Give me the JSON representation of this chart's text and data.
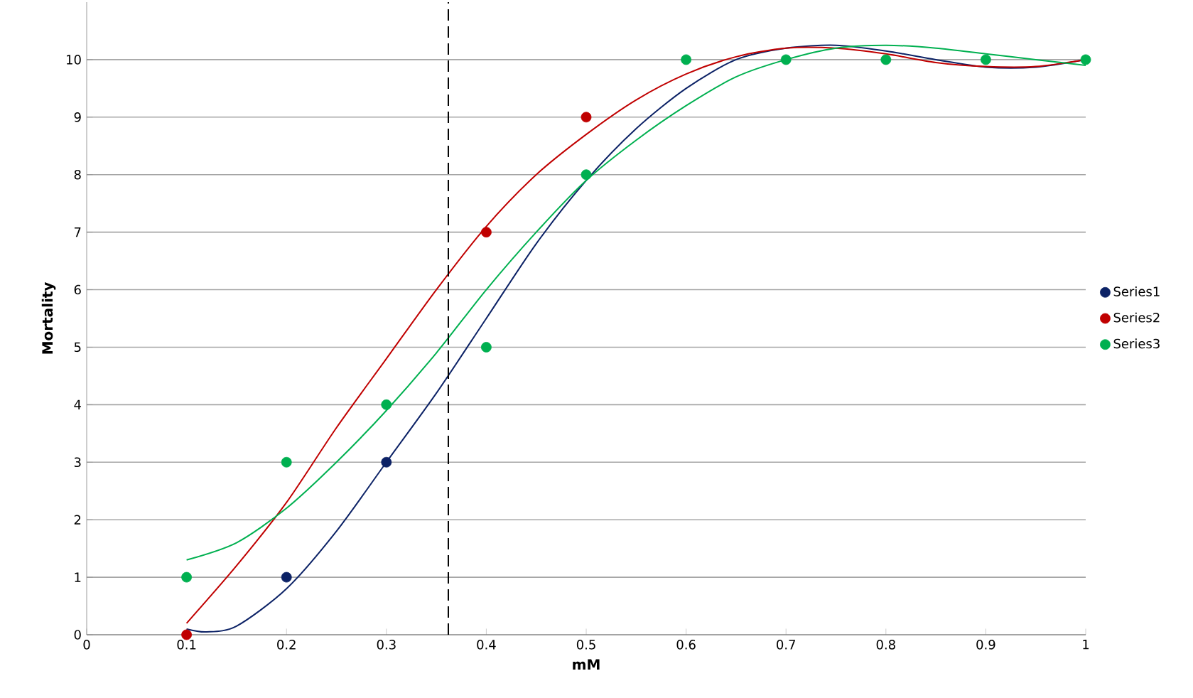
{
  "chart_data": {
    "type": "scatter",
    "xlabel": "mM",
    "ylabel": "Mortality",
    "x": [
      0.1,
      0.2,
      0.3,
      0.4,
      0.5,
      0.6,
      0.7,
      0.8,
      0.9,
      1
    ],
    "xlim": [
      0,
      1
    ],
    "ylim": [
      0,
      11
    ],
    "xticks": [
      0,
      0.1,
      0.2,
      0.3,
      0.4,
      0.5,
      0.6,
      0.7,
      0.8,
      0.9,
      1
    ],
    "yticks": [
      0,
      1,
      2,
      3,
      4,
      5,
      6,
      7,
      8,
      9,
      10
    ],
    "grid": "y",
    "legend": "right",
    "marker": "circle",
    "series": [
      {
        "name": "Series1",
        "color": "#0c2266",
        "values": [
          null,
          1,
          3,
          null,
          null,
          null,
          null,
          null,
          null,
          null
        ]
      },
      {
        "name": "Series2",
        "color": "#c00000",
        "values": [
          0,
          null,
          null,
          7,
          9,
          null,
          null,
          null,
          null,
          null
        ]
      },
      {
        "name": "Series3",
        "color": "#00b050",
        "values": [
          1,
          3,
          4,
          5,
          8,
          10,
          10,
          10,
          10,
          10
        ]
      },
      {
        "type": "line",
        "marker": "none",
        "color": "#0c2266",
        "x": [
          0.1,
          0.12,
          0.15,
          0.2,
          0.25,
          0.3,
          0.35,
          0.4,
          0.45,
          0.5,
          0.55,
          0.6,
          0.65,
          0.7,
          0.75,
          0.8,
          0.85,
          0.9,
          0.95,
          1
        ],
        "values": [
          0.1,
          0.05,
          0.15,
          0.8,
          1.8,
          3.0,
          4.2,
          5.5,
          6.8,
          7.9,
          8.8,
          9.5,
          10.0,
          10.2,
          10.25,
          10.15,
          10.0,
          9.87,
          9.87,
          10.0
        ]
      },
      {
        "type": "line",
        "marker": "none",
        "color": "#c00000",
        "x": [
          0.1,
          0.15,
          0.2,
          0.25,
          0.3,
          0.35,
          0.4,
          0.45,
          0.5,
          0.55,
          0.6,
          0.65,
          0.7,
          0.75,
          0.8,
          0.85,
          0.9,
          0.95,
          1
        ],
        "values": [
          0.2,
          1.2,
          2.3,
          3.6,
          4.8,
          6.0,
          7.1,
          8.0,
          8.7,
          9.3,
          9.75,
          10.05,
          10.2,
          10.2,
          10.1,
          9.95,
          9.88,
          9.88,
          10.0
        ]
      },
      {
        "type": "line",
        "marker": "none",
        "color": "#00b050",
        "x": [
          0.1,
          0.15,
          0.2,
          0.25,
          0.3,
          0.35,
          0.4,
          0.45,
          0.5,
          0.55,
          0.6,
          0.65,
          0.7,
          0.75,
          0.8,
          0.85,
          0.9,
          0.95,
          1
        ],
        "values": [
          1.3,
          1.6,
          2.2,
          3.0,
          3.9,
          4.9,
          6.0,
          7.0,
          7.9,
          8.6,
          9.2,
          9.7,
          10.0,
          10.2,
          10.25,
          10.2,
          10.1,
          10.0,
          9.9
        ]
      }
    ],
    "ref_lines": [
      {
        "axis": "x",
        "value": 0.362,
        "line_style": "dashed",
        "color": "#000000"
      }
    ]
  }
}
